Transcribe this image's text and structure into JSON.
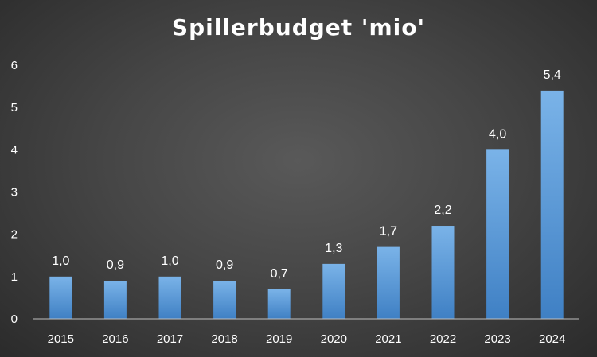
{
  "chart_data": {
    "type": "bar",
    "title": "Spillerbudget 'mio'",
    "xlabel": "",
    "ylabel": "",
    "categories": [
      "2015",
      "2016",
      "2017",
      "2018",
      "2019",
      "2020",
      "2021",
      "2022",
      "2023",
      "2024"
    ],
    "values": [
      1.0,
      0.9,
      1.0,
      0.9,
      0.7,
      1.3,
      1.7,
      2.2,
      4.0,
      5.4
    ],
    "data_labels": [
      "1,0",
      "0,9",
      "1,0",
      "0,9",
      "0,7",
      "1,3",
      "1,7",
      "2,2",
      "4,0",
      "5,4"
    ],
    "y_ticks": [
      "0",
      "1",
      "2",
      "3",
      "4",
      "5",
      "6"
    ],
    "ylim": [
      0,
      6
    ],
    "grid": false,
    "legend": "none",
    "bar_color": "#5b9bd5"
  }
}
